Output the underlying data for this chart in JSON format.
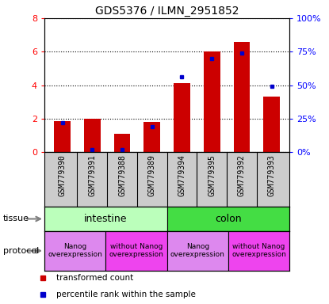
{
  "title": "GDS5376 / ILMN_2951852",
  "samples": [
    "GSM779390",
    "GSM779391",
    "GSM779388",
    "GSM779389",
    "GSM779394",
    "GSM779395",
    "GSM779392",
    "GSM779393"
  ],
  "transformed_count": [
    1.85,
    2.0,
    1.1,
    1.8,
    4.1,
    6.0,
    6.6,
    3.3
  ],
  "percentile_rank_pct": [
    22,
    2,
    2,
    19,
    56,
    70,
    74,
    49
  ],
  "bar_color": "#cc0000",
  "dot_color": "#0000cc",
  "ylim_left": [
    0,
    8
  ],
  "ylim_right": [
    0,
    100
  ],
  "yticks_left": [
    0,
    2,
    4,
    6,
    8
  ],
  "ytick_labels_left": [
    "0",
    "2",
    "4",
    "6",
    "8"
  ],
  "ytick_labels_right": [
    "0%",
    "25%",
    "50%",
    "75%",
    "100%"
  ],
  "tissue_groups": [
    {
      "label": "intestine",
      "start": 0,
      "end": 4,
      "color": "#bbffbb"
    },
    {
      "label": "colon",
      "start": 4,
      "end": 8,
      "color": "#44dd44"
    }
  ],
  "protocol_groups": [
    {
      "label": "Nanog\noverexpression",
      "start": 0,
      "end": 2,
      "color": "#dd88ee"
    },
    {
      "label": "without Nanog\noverexpression",
      "start": 2,
      "end": 4,
      "color": "#ee44ee"
    },
    {
      "label": "Nanog\noverexpression",
      "start": 4,
      "end": 6,
      "color": "#dd88ee"
    },
    {
      "label": "without Nanog\noverexpression",
      "start": 6,
      "end": 8,
      "color": "#ee44ee"
    }
  ],
  "legend_items": [
    {
      "label": "transformed count",
      "color": "#cc0000"
    },
    {
      "label": "percentile rank within the sample",
      "color": "#0000cc"
    }
  ],
  "xticklabel_bg": "#cccccc",
  "bar_width": 0.55
}
